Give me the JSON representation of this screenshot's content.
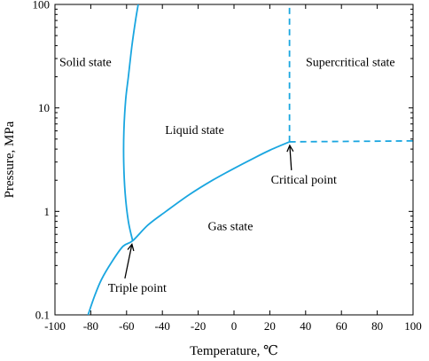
{
  "chart_data": {
    "type": "line",
    "xlabel": "Temperature, ℃",
    "ylabel": "Pressure, MPa",
    "xlim": [
      -100,
      100
    ],
    "ylim": [
      0.1,
      100
    ],
    "yscale": "log",
    "grid": false,
    "line_color": "#1aa6e0",
    "x_ticks": [
      "-100",
      "-80",
      "-60",
      "-40",
      "-20",
      "0",
      "20",
      "40",
      "60",
      "80",
      "100"
    ],
    "y_ticks": [
      {
        "value": 0.1,
        "label": "0.1"
      },
      {
        "value": 1,
        "label": "1"
      },
      {
        "value": 10,
        "label": "10"
      },
      {
        "value": 100,
        "label": "100"
      }
    ],
    "series": [
      {
        "style": "solid",
        "points": [
          [
            -81.5,
            0.1
          ],
          [
            -78,
            0.15
          ],
          [
            -74,
            0.22
          ],
          [
            -68,
            0.33
          ],
          [
            -62,
            0.46
          ],
          [
            -56.6,
            0.52
          ],
          [
            -48,
            0.74
          ],
          [
            -38,
            1.0
          ],
          [
            -25,
            1.45
          ],
          [
            -12,
            2.0
          ],
          [
            0,
            2.6
          ],
          [
            10,
            3.2
          ],
          [
            20,
            3.9
          ],
          [
            31,
            4.7
          ]
        ]
      },
      {
        "style": "solid",
        "points": [
          [
            -56.6,
            0.52
          ],
          [
            -59,
            0.8
          ],
          [
            -60.8,
            1.5
          ],
          [
            -61.6,
            3
          ],
          [
            -61.5,
            6
          ],
          [
            -60.5,
            12
          ],
          [
            -59,
            20
          ],
          [
            -57,
            40
          ],
          [
            -55,
            70
          ],
          [
            -53.5,
            100
          ]
        ]
      },
      {
        "style": "dashed",
        "points": [
          [
            31,
            4.7
          ],
          [
            31,
            100
          ]
        ]
      },
      {
        "style": "dashed",
        "points": [
          [
            31,
            4.7
          ],
          [
            100,
            4.8
          ]
        ]
      }
    ],
    "regions": [
      {
        "label": "Solid state",
        "x": -83,
        "y": 28
      },
      {
        "label": "Liquid state",
        "x": -22,
        "y": 6.2
      },
      {
        "label": "Gas state",
        "x": -2,
        "y": 0.73
      },
      {
        "label": "Supercritical state",
        "x": 65,
        "y": 28
      }
    ],
    "annotations": [
      {
        "label": "Critical point",
        "x": 31,
        "y": 4.7,
        "text_x": 39,
        "text_y": 2.05
      },
      {
        "label": "Triple point",
        "x": -56.6,
        "y": 0.52,
        "text_x": -54,
        "text_y": 0.185
      }
    ]
  }
}
